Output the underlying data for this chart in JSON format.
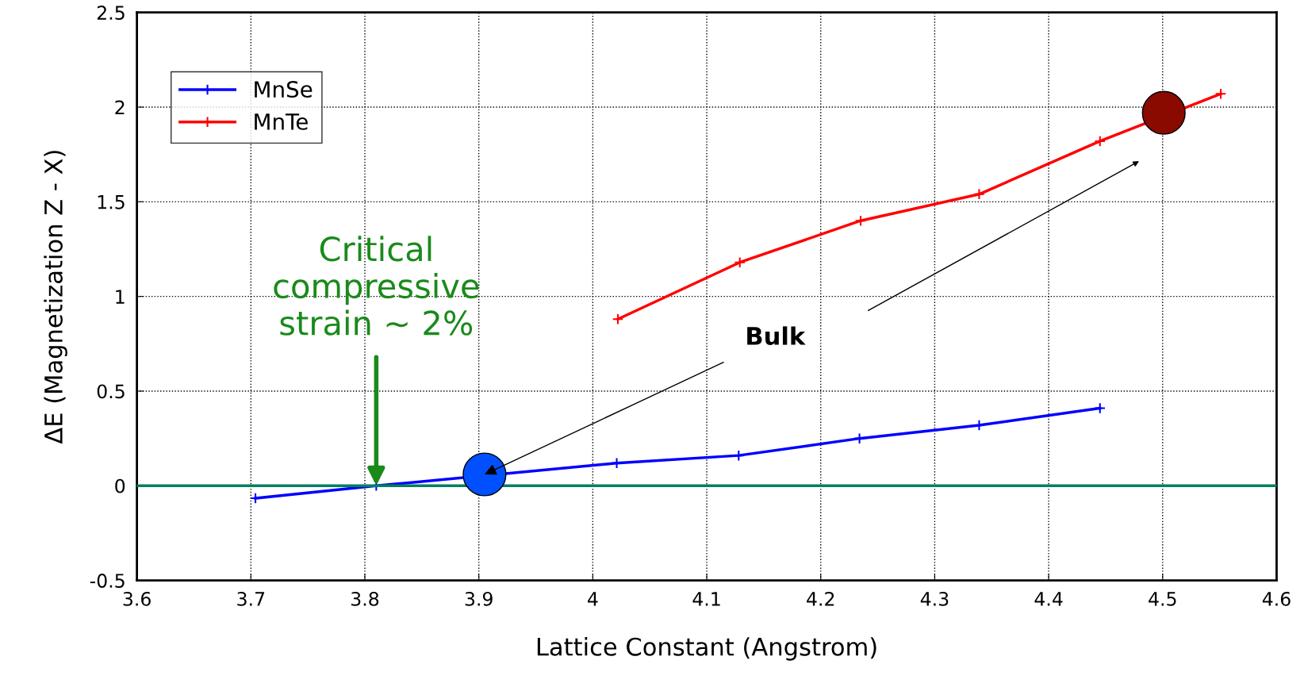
{
  "chart_data": {
    "type": "line",
    "xlabel": "Lattice Constant (Angstrom)",
    "ylabel": "ΔE (Magnetization Z - X)",
    "xlim": [
      3.6,
      4.6
    ],
    "xticks": [
      3.6,
      3.7,
      3.8,
      3.9,
      4,
      4.1,
      4.2,
      4.3,
      4.4,
      4.5,
      4.6
    ],
    "ylim": [
      -0.5,
      2.5
    ],
    "yticks": [
      -0.5,
      0,
      0.5,
      1,
      1.5,
      2,
      2.5
    ],
    "grid": true,
    "legend": "top left",
    "marker": "cross",
    "line_style": "solid",
    "series": [
      {
        "name": "MnSe",
        "color": "#0000ff",
        "x": [
          3.704,
          3.81,
          4.021,
          4.128,
          4.234,
          4.339,
          4.445
        ],
        "values": [
          -0.066,
          0.0,
          0.12,
          0.16,
          0.25,
          0.32,
          0.41
        ]
      },
      {
        "name": "MnTe",
        "color": "#ff0000",
        "x": [
          4.022,
          4.129,
          4.235,
          4.339,
          4.445,
          4.551
        ],
        "values": [
          0.88,
          1.18,
          1.4,
          1.54,
          1.82,
          2.07
        ]
      },
      {
        "type": "scatter",
        "marker": "circle",
        "colors": [
          "#0050ff",
          "#8b0a00"
        ],
        "x": [
          3.905,
          4.501
        ],
        "values": [
          0.06,
          1.97
        ]
      }
    ],
    "ref_lines": [
      {
        "axis": "y",
        "value": 0,
        "color": "#008060"
      }
    ],
    "annotations": [
      {
        "text": "Critical\ncompressive\nstrain ~ 2%",
        "x": 3.81,
        "y": 0.0
      },
      {
        "text": "Bulk",
        "x": 3.905,
        "y": 0.06
      }
    ]
  }
}
